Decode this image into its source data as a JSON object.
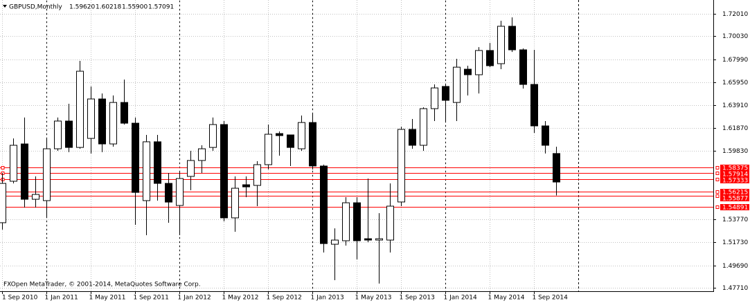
{
  "chart_data": {
    "type": "candlestick",
    "title": "GBPUSD,Monthly",
    "header_values": [
      "1.59620",
      "1.60218",
      "1.55900",
      "1.57091"
    ],
    "footer": "FXOpen MetaTrader, © 2001-2014, MetaQuotes Software Corp.",
    "categories": [
      "1 Sep 2010",
      null,
      null,
      null,
      "1 Jan 2011",
      null,
      null,
      null,
      "1 May 2011",
      null,
      null,
      null,
      "1 Sep 2011",
      null,
      null,
      null,
      "1 Jan 2012",
      null,
      null,
      null,
      "1 May 2012",
      null,
      null,
      null,
      "1 Sep 2012",
      null,
      null,
      null,
      "1 Jan 2013",
      null,
      null,
      null,
      "1 May 2013",
      null,
      null,
      null,
      "1 Sep 2013",
      null,
      null,
      null,
      "1 Jan 2014",
      null,
      null,
      null,
      "1 May 2014",
      null,
      null,
      null,
      "1 Sep 2014",
      null,
      null
    ],
    "open": [
      1.5348,
      1.5716,
      1.6047,
      1.5556,
      1.5544,
      1.6004,
      1.625,
      1.6016,
      1.6096,
      1.6446,
      1.6047,
      1.6415,
      1.6231,
      1.5544,
      1.6066,
      1.5697,
      1.5501,
      1.5759,
      1.59,
      1.6016,
      1.6219,
      1.5391,
      1.5685,
      1.5679,
      1.5863,
      1.6139,
      1.6127,
      1.6004,
      1.6237,
      1.5851,
      1.5157,
      1.5188,
      1.5525,
      1.5206,
      1.5194,
      1.5194,
      1.5532,
      1.6176,
      1.6035,
      1.636,
      1.6557,
      1.6415,
      1.671,
      1.6661,
      1.6876,
      1.6759,
      1.7091,
      1.6882,
      1.6575,
      1.6207,
      1.5962
    ],
    "high": [
      1.5789,
      1.6096,
      1.6281,
      1.5759,
      1.6096,
      1.6281,
      1.6403,
      1.6784,
      1.6557,
      1.6495,
      1.6477,
      1.6618,
      1.6281,
      1.6127,
      1.6127,
      1.5789,
      1.5802,
      1.5986,
      1.6035,
      1.6281,
      1.625,
      1.5759,
      1.5759,
      1.5894,
      1.6219,
      1.6158,
      1.6127,
      1.6299,
      1.6311,
      1.5863,
      1.5298,
      1.5575,
      1.5575,
      1.574,
      1.5433,
      1.5697,
      1.62,
      1.6268,
      1.6372,
      1.6575,
      1.6575,
      1.6802,
      1.6741,
      1.6906,
      1.6943,
      1.714,
      1.717,
      1.6894,
      1.6882,
      1.625,
      1.60218
    ],
    "low": [
      1.5286,
      1.5697,
      1.5483,
      1.5483,
      1.5391,
      1.5986,
      1.5974,
      1.6004,
      1.5962,
      1.5974,
      1.6023,
      1.6219,
      1.5329,
      1.5237,
      1.5544,
      1.5348,
      1.5237,
      1.5636,
      1.5789,
      1.5986,
      1.536,
      1.5268,
      1.5575,
      1.5495,
      1.582,
      1.5943,
      1.5851,
      1.5986,
      1.582,
      1.5084,
      1.4838,
      1.5145,
      1.5023,
      1.5175,
      1.4808,
      1.5084,
      1.5495,
      1.6004,
      1.5986,
      1.625,
      1.625,
      1.625,
      1.6477,
      1.6495,
      1.6728,
      1.671,
      1.6863,
      1.6538,
      1.6145,
      1.5962,
      1.559
    ],
    "close": [
      1.5697,
      1.6035,
      1.5556,
      1.5599,
      1.6004,
      1.625,
      1.6016,
      1.6692,
      1.6446,
      1.6047,
      1.6415,
      1.6231,
      1.5617,
      1.6066,
      1.5697,
      1.5531,
      1.574,
      1.59,
      1.6004,
      1.6219,
      1.5391,
      1.5654,
      1.5666,
      1.5863,
      1.6133,
      1.6121,
      1.6016,
      1.6237,
      1.5851,
      1.5163,
      1.5194,
      1.5525,
      1.5188,
      1.5194,
      1.5206,
      1.5495,
      1.6176,
      1.6035,
      1.636,
      1.6544,
      1.6434,
      1.6728,
      1.6661,
      1.6876,
      1.6741,
      1.7091,
      1.6882,
      1.6575,
      1.6207,
      1.6035,
      1.57091
    ],
    "up_color": "#ffffff",
    "down_color": "#000000",
    "ylim": [
      1.474,
      1.7324
    ],
    "yticks": [
      {
        "value": 1.7201,
        "label": "1.72010"
      },
      {
        "value": 1.7003,
        "label": "1.70030"
      },
      {
        "value": 1.6799,
        "label": "1.67990"
      },
      {
        "value": 1.6595,
        "label": "1.65950"
      },
      {
        "value": 1.6391,
        "label": "1.63910"
      },
      {
        "value": 1.6187,
        "label": "1.61870"
      },
      {
        "value": 1.5983,
        "label": "1.59830"
      },
      {
        "value": 1.5377,
        "label": "1.53770"
      },
      {
        "value": 1.5173,
        "label": "1.51730"
      },
      {
        "value": 1.4969,
        "label": "1.49690"
      },
      {
        "value": 1.4771,
        "label": "1.47710"
      }
    ],
    "grid": true,
    "levels": {
      "color": "#ff0000",
      "values": [
        1.58375,
        1.57914,
        1.57333,
        1.56215,
        1.55877,
        1.54891
      ]
    }
  }
}
